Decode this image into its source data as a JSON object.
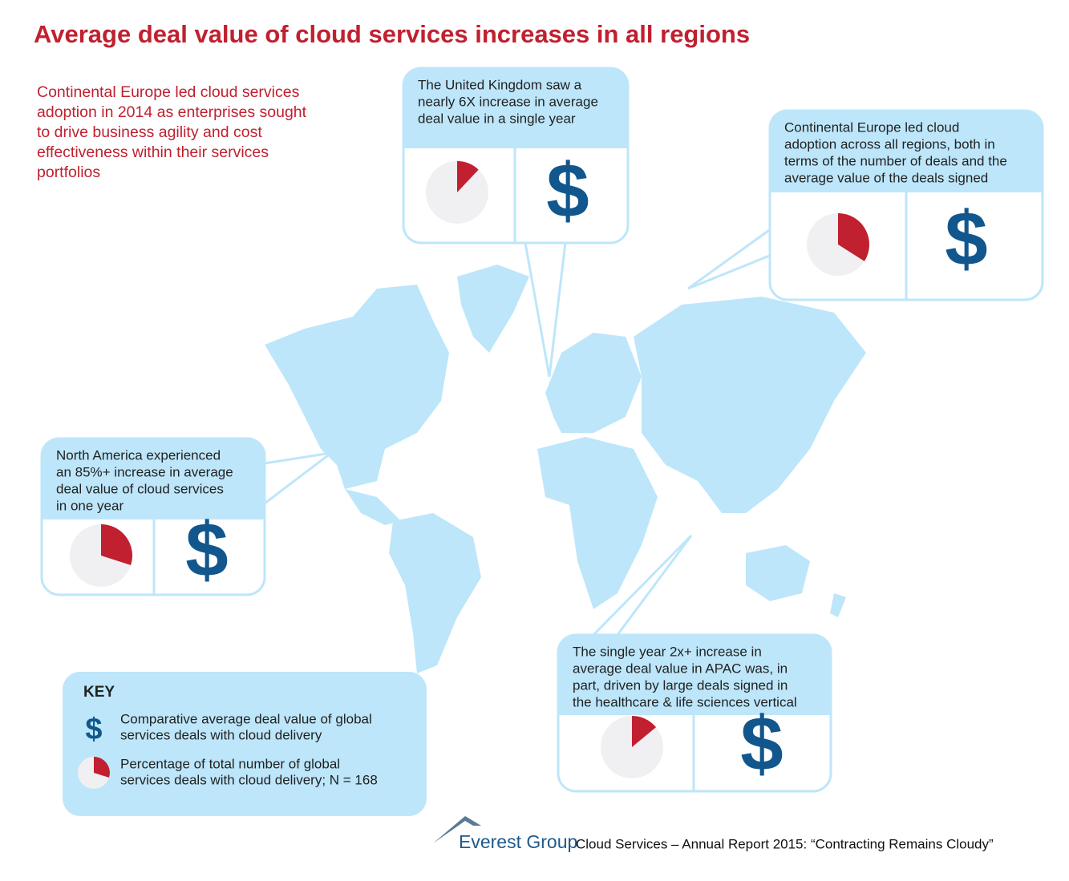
{
  "title": "Average deal value of cloud services increases in all regions",
  "intro": [
    "Continental Europe led cloud services",
    "adoption in 2014 as enterprises sought",
    "to drive business agility and cost",
    "effectiveness within their services",
    "portfolios"
  ],
  "currency_symbol": "$",
  "callouts": [
    {
      "lines": [
        "The United Kingdom saw a",
        "nearly 6X increase in average",
        "deal value in a single year"
      ],
      "pie_share": 12
    },
    {
      "lines": [
        "Continental Europe led cloud",
        "adoption across all regions, both in",
        "terms of the number of deals and the",
        "average value of the deals signed"
      ],
      "pie_share": 34
    },
    {
      "lines": [
        "North America experienced",
        "an 85%+ increase in average",
        "deal value of cloud services",
        "in one year"
      ],
      "pie_share": 30
    },
    {
      "lines": [
        "The single year 2x+ increase in",
        "average deal value in APAC was, in",
        "part, driven by large deals signed in",
        "the healthcare & life sciences vertical"
      ],
      "pie_share": 14
    }
  ],
  "key": {
    "heading": "KEY",
    "items": [
      {
        "lines": [
          "Comparative average deal value of global",
          "services deals with cloud delivery"
        ]
      },
      {
        "lines": [
          "Percentage of total number of global",
          "services deals with cloud delivery; N = 168"
        ]
      }
    ]
  },
  "footer": {
    "brand": "Everest Group",
    "source": "Cloud Services – Annual Report 2015: “Contracting Remains Cloudy”"
  }
}
